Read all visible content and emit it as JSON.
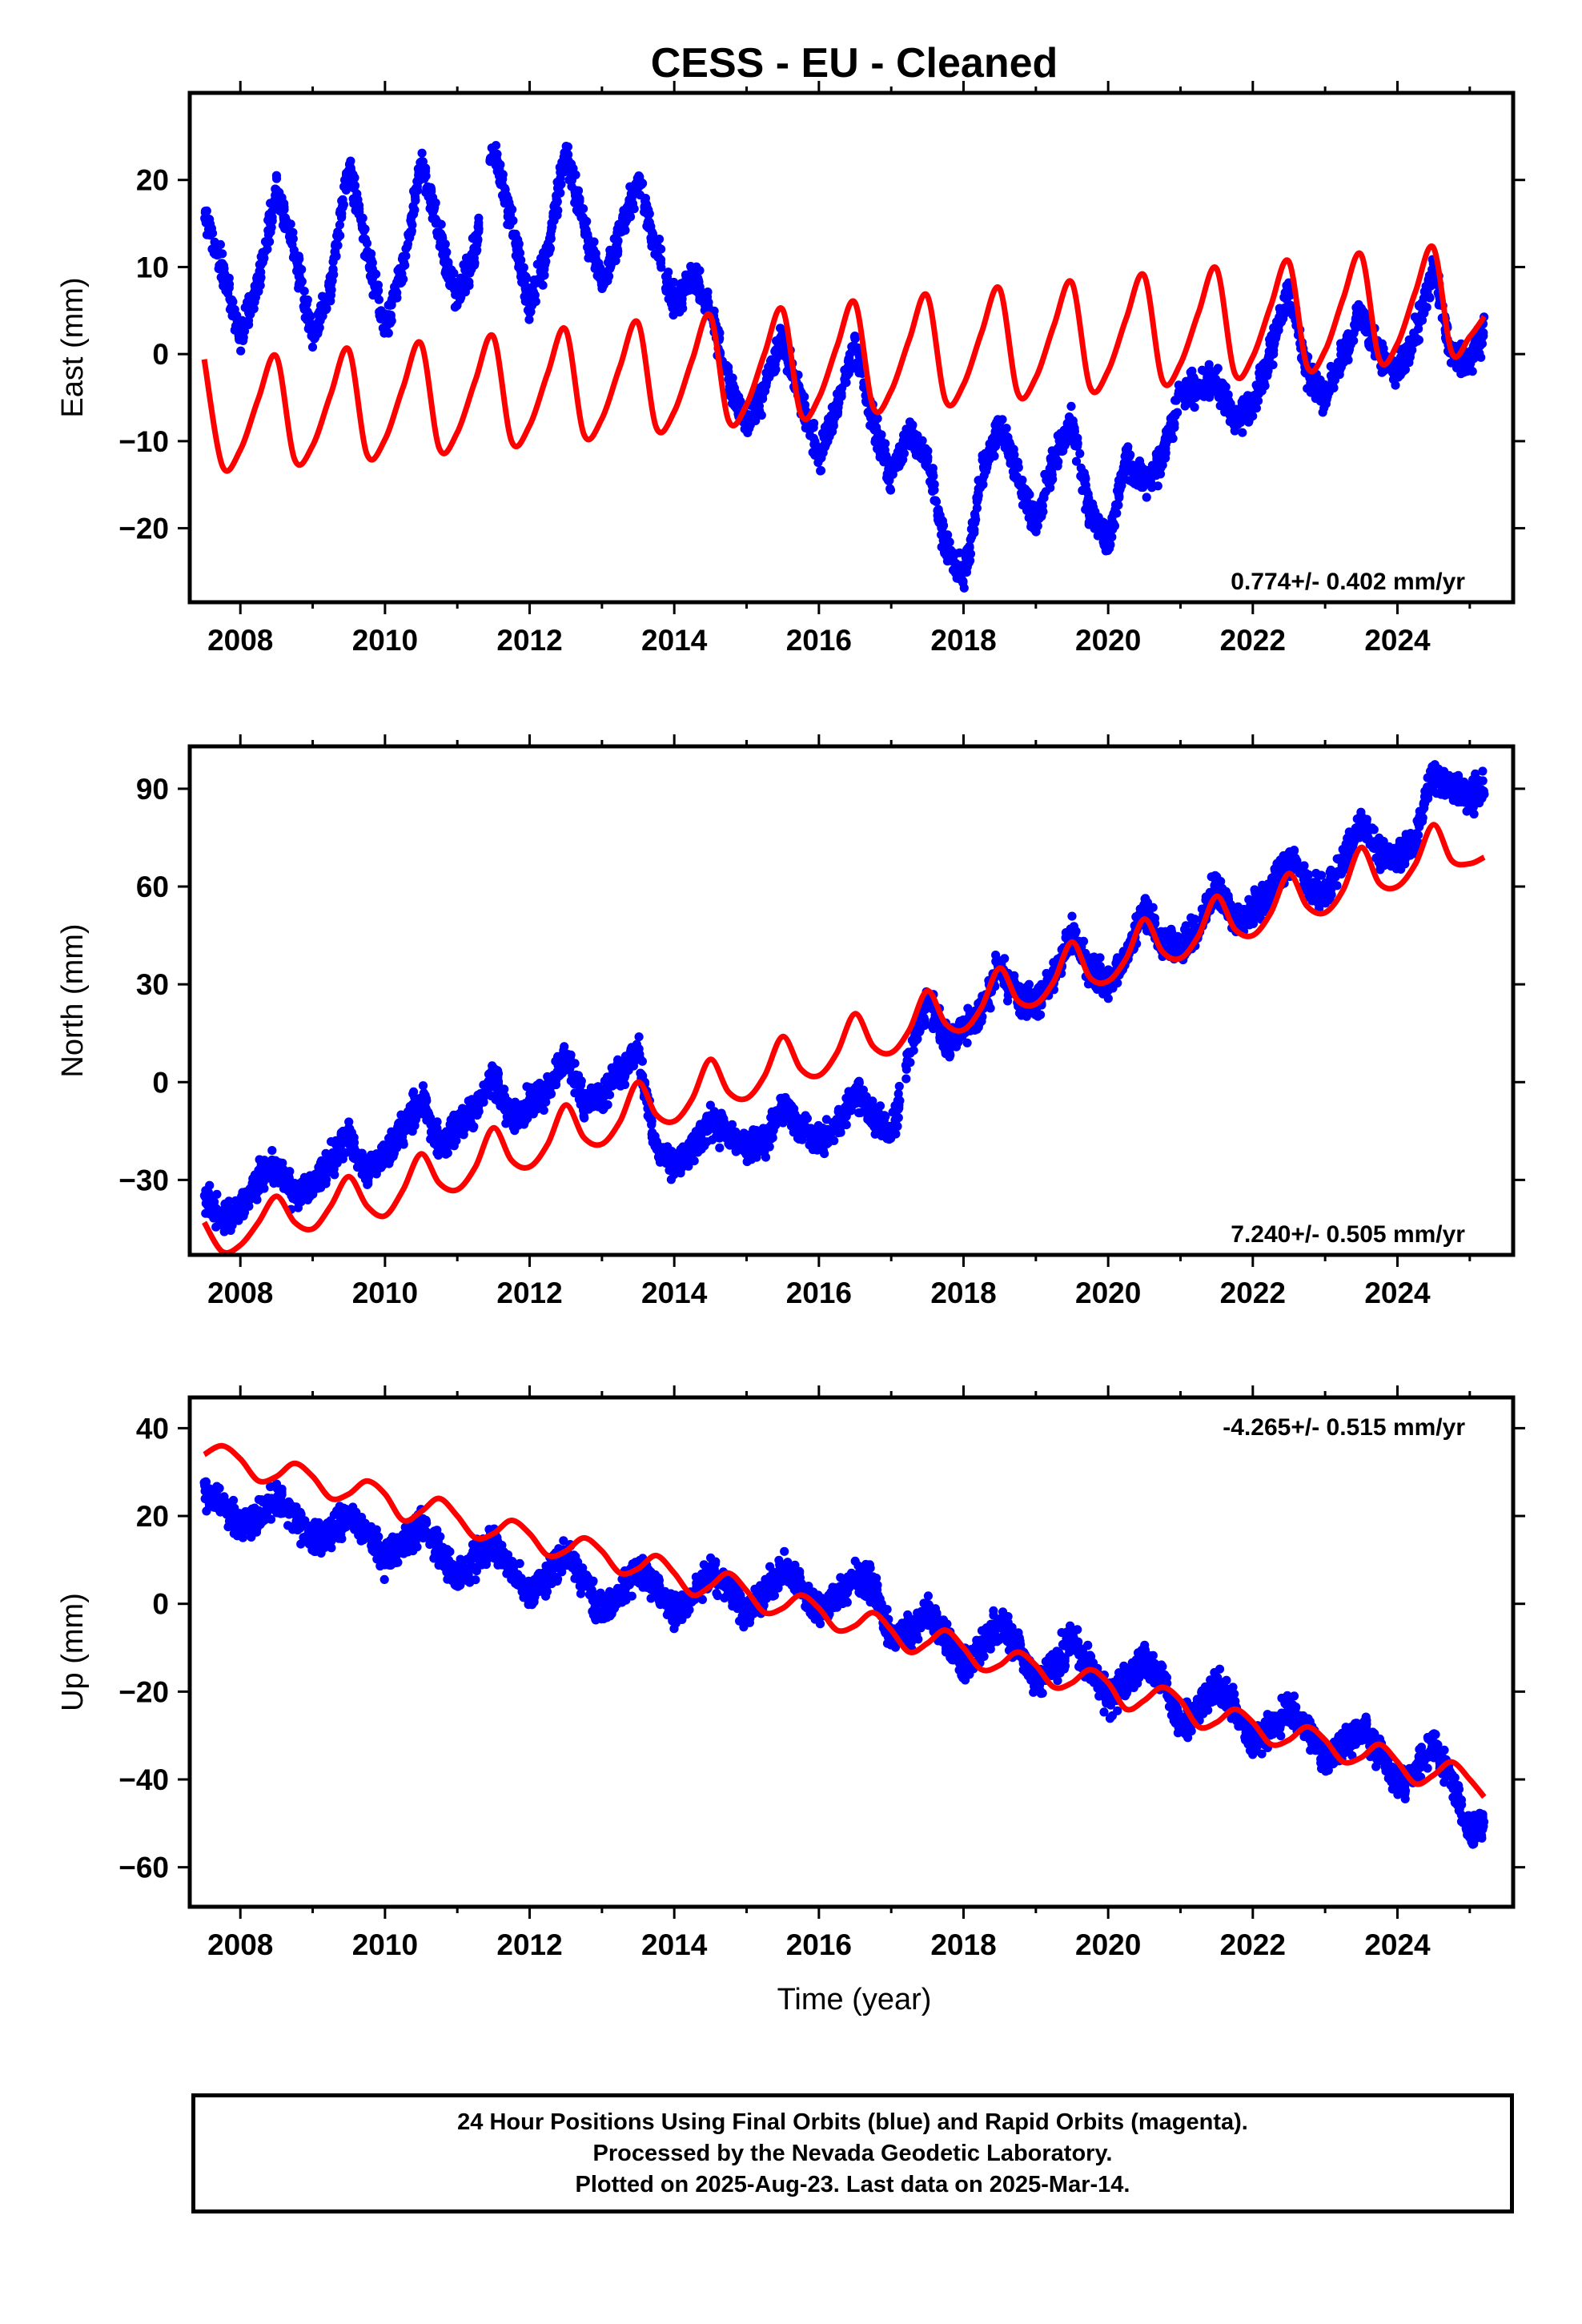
{
  "title": "CESS  - EU - Cleaned",
  "xlabel": "Time (year)",
  "footer": {
    "line1": "24 Hour Positions Using Final Orbits (blue) and Rapid Orbits (magenta).",
    "line2": "Processed by the Nevada Geodetic Laboratory.",
    "line3": "Plotted on 2025-Aug-23. Last data on 2025-Mar-14."
  },
  "colors": {
    "observations": "#0000ff",
    "model": "#ff0000",
    "frame": "#000000"
  },
  "chart_data": [
    {
      "type": "scatter",
      "component": "East",
      "ylabel": "East (mm)",
      "xlim": [
        2007.3,
        2025.6
      ],
      "ylim": [
        -28.5,
        30
      ],
      "xticks": [
        2008,
        2010,
        2012,
        2014,
        2016,
        2018,
        2020,
        2022,
        2024
      ],
      "yticks": [
        -20,
        -10,
        0,
        10,
        20
      ],
      "rate_label": "0.774+/- 0.402 mm/yr",
      "rate_position": "bottom-right",
      "series": [
        {
          "kind": "observations",
          "x": [
            2007.5,
            2007.75,
            2008.0,
            2008.25,
            2008.5,
            2008.75,
            2009.0,
            2009.25,
            2009.5,
            2009.75,
            2010.0,
            2010.25,
            2010.5,
            2010.75,
            2011.0,
            2011.25,
            2011.5,
            2011.75,
            2012.0,
            2012.25,
            2012.5,
            2012.75,
            2013.0,
            2013.25,
            2013.5,
            2013.75,
            2014.0,
            2014.25,
            2014.5,
            2014.75,
            2015.0,
            2015.25,
            2015.5,
            2015.75,
            2016.0,
            2016.25,
            2016.5,
            2016.75,
            2017.0,
            2017.25,
            2017.5,
            2017.75,
            2018.0,
            2018.25,
            2018.5,
            2018.75,
            2019.0,
            2019.25,
            2019.5,
            2019.75,
            2020.0,
            2020.25,
            2020.5,
            2020.75,
            2021.0,
            2021.25,
            2021.5,
            2021.75,
            2022.0,
            2022.25,
            2022.5,
            2022.75,
            2023.0,
            2023.25,
            2023.5,
            2023.75,
            2024.0,
            2024.25,
            2024.5,
            2024.75,
            2025.0,
            2025.2
          ],
          "y": [
            16,
            10,
            2,
            8,
            19,
            12,
            2,
            8,
            22,
            12,
            3,
            10,
            22,
            14,
            6,
            12,
            24,
            15,
            5,
            12,
            23,
            15,
            8,
            14,
            20,
            12,
            6,
            9,
            5,
            -3,
            -8,
            -4,
            2,
            -5,
            -12,
            -6,
            1,
            -8,
            -14,
            -9,
            -12,
            -22,
            -26,
            -14,
            -8,
            -14,
            -20,
            -12,
            -8,
            -18,
            -22,
            -12,
            -15,
            -12,
            -4,
            -4,
            -3,
            -8,
            -6,
            0,
            8,
            -2,
            -5,
            0,
            5,
            0,
            -2,
            2,
            10,
            0,
            -1,
            3
          ]
        },
        {
          "kind": "model",
          "x": [
            2007.5,
            2007.75,
            2008.0,
            2008.25,
            2008.5,
            2008.75,
            2009.0,
            2009.25,
            2009.5,
            2009.75,
            2010.0,
            2010.25,
            2010.5,
            2010.75,
            2011.0,
            2011.25,
            2011.5,
            2011.75,
            2012.0,
            2012.25,
            2012.5,
            2012.75,
            2013.0,
            2013.25,
            2013.5,
            2013.75,
            2014.0,
            2014.25,
            2014.5,
            2014.75,
            2015.0,
            2015.25,
            2015.5,
            2015.75,
            2016.0,
            2016.25,
            2016.5,
            2016.75,
            2017.0,
            2017.25,
            2017.5,
            2017.75,
            2018.0,
            2018.25,
            2018.5,
            2018.75,
            2019.0,
            2019.25,
            2019.5,
            2019.75,
            2020.0,
            2020.25,
            2020.5,
            2020.75,
            2021.0,
            2021.25,
            2021.5,
            2021.75,
            2022.0,
            2022.25,
            2022.5,
            2022.75,
            2023.0,
            2023.25,
            2023.5,
            2023.75,
            2024.0,
            2024.25,
            2024.5,
            2024.75,
            2025.0,
            2025.2
          ],
          "y": [
            -0.6,
            -12.8,
            -11.0,
            -5.1,
            -0.3,
            -12.1,
            -10.5,
            -4.6,
            0.5,
            -11.5,
            -9.8,
            -3.8,
            1.2,
            -10.8,
            -9.0,
            -3.0,
            2.0,
            -10.0,
            -8.2,
            -2.2,
            2.8,
            -9.2,
            -7.4,
            -1.4,
            3.6,
            -8.4,
            -6.6,
            -0.6,
            4.4,
            -7.6,
            -5.8,
            0.1,
            5.1,
            -6.9,
            -5.0,
            0.9,
            5.9,
            -6.1,
            -4.2,
            1.7,
            6.7,
            -5.3,
            -3.5,
            2.5,
            7.5,
            -4.5,
            -2.7,
            3.3,
            8.2,
            -3.8,
            -1.9,
            4.1,
            9.0,
            -3.0,
            -1.1,
            4.8,
            9.8,
            -2.2,
            -0.3,
            5.6,
            10.6,
            -1.4,
            0.4,
            6.4,
            11.4,
            -0.6,
            1.2,
            7.2,
            12.2,
            0.2,
            2.0,
            4.3
          ]
        }
      ]
    },
    {
      "type": "scatter",
      "component": "North",
      "ylabel": "North (mm)",
      "xlim": [
        2007.3,
        2025.6
      ],
      "ylim": [
        -53,
        103
      ],
      "xticks": [
        2008,
        2010,
        2012,
        2014,
        2016,
        2018,
        2020,
        2022,
        2024
      ],
      "yticks": [
        -30,
        0,
        30,
        60,
        90
      ],
      "rate_label": "7.240+/- 0.505 mm/yr",
      "rate_position": "bottom-right",
      "series": [
        {
          "kind": "observations",
          "x": [
            2007.5,
            2007.75,
            2008.0,
            2008.25,
            2008.5,
            2008.75,
            2009.0,
            2009.25,
            2009.5,
            2009.75,
            2010.0,
            2010.25,
            2010.5,
            2010.75,
            2011.0,
            2011.25,
            2011.5,
            2011.75,
            2012.0,
            2012.25,
            2012.5,
            2012.75,
            2013.0,
            2013.25,
            2013.5,
            2013.75,
            2014.0,
            2014.25,
            2014.5,
            2014.75,
            2015.0,
            2015.25,
            2015.5,
            2015.75,
            2016.0,
            2016.25,
            2016.5,
            2016.75,
            2017.0,
            2017.25,
            2017.5,
            2017.75,
            2018.0,
            2018.25,
            2018.5,
            2018.75,
            2019.0,
            2019.25,
            2019.5,
            2019.75,
            2020.0,
            2020.25,
            2020.5,
            2020.75,
            2021.0,
            2021.25,
            2021.5,
            2021.75,
            2022.0,
            2022.25,
            2022.5,
            2022.75,
            2023.0,
            2023.25,
            2023.5,
            2023.75,
            2024.0,
            2024.25,
            2024.5,
            2024.75,
            2025.0,
            2025.2
          ],
          "y": [
            -35,
            -42,
            -38,
            -30,
            -26,
            -35,
            -32,
            -24,
            -16,
            -28,
            -22,
            -15,
            -4,
            -20,
            -14,
            -8,
            2,
            -12,
            -6,
            -2,
            8,
            -6,
            -4,
            2,
            10,
            -22,
            -25,
            -20,
            -12,
            -16,
            -20,
            -18,
            -8,
            -14,
            -18,
            -14,
            -4,
            -10,
            -16,
            8,
            26,
            12,
            16,
            22,
            35,
            26,
            24,
            32,
            46,
            34,
            30,
            38,
            54,
            42,
            42,
            48,
            60,
            50,
            52,
            58,
            70,
            60,
            58,
            68,
            80,
            70,
            68,
            75,
            95,
            90,
            88,
            90
          ]
        },
        {
          "kind": "model",
          "x": [
            2007.5,
            2007.75,
            2008.0,
            2008.25,
            2008.5,
            2008.75,
            2009.0,
            2009.25,
            2009.5,
            2009.75,
            2010.0,
            2010.25,
            2010.5,
            2010.75,
            2011.0,
            2011.25,
            2011.5,
            2011.75,
            2012.0,
            2012.25,
            2012.5,
            2012.75,
            2013.0,
            2013.25,
            2013.5,
            2013.75,
            2014.0,
            2014.25,
            2014.5,
            2014.75,
            2015.0,
            2015.25,
            2015.5,
            2015.75,
            2016.0,
            2016.25,
            2016.5,
            2016.75,
            2017.0,
            2017.25,
            2017.5,
            2017.75,
            2018.0,
            2018.25,
            2018.5,
            2018.75,
            2019.0,
            2019.25,
            2019.5,
            2019.75,
            2020.0,
            2020.25,
            2020.5,
            2020.75,
            2021.0,
            2021.25,
            2021.5,
            2021.75,
            2022.0,
            2022.25,
            2022.5,
            2022.75,
            2023.0,
            2023.25,
            2023.5,
            2023.75,
            2024.0,
            2024.25,
            2024.5,
            2024.75,
            2025.0,
            2025.2
          ],
          "y": [
            -43,
            -52,
            -50,
            -43,
            -35,
            -43,
            -45,
            -38,
            -29,
            -38,
            -41,
            -33,
            -22,
            -31,
            -33,
            -26,
            -14,
            -24,
            -26,
            -19,
            -7,
            -17,
            -19,
            -12,
            0,
            -10,
            -12,
            -5,
            7,
            -3,
            -5,
            2,
            14,
            4,
            2,
            9,
            21,
            11,
            9,
            16,
            28,
            18,
            16,
            23,
            35,
            25,
            24,
            31,
            43,
            32,
            31,
            38,
            50,
            40,
            38,
            45,
            57,
            47,
            45,
            52,
            64,
            54,
            52,
            59,
            72,
            61,
            60,
            67,
            79,
            68,
            67,
            69
          ]
        }
      ]
    },
    {
      "type": "scatter",
      "component": "Up",
      "ylabel": "Up (mm)",
      "xlim": [
        2007.3,
        2025.6
      ],
      "ylim": [
        -69,
        47
      ],
      "xticks": [
        2008,
        2010,
        2012,
        2014,
        2016,
        2018,
        2020,
        2022,
        2024
      ],
      "yticks": [
        -60,
        -40,
        -20,
        0,
        20,
        40
      ],
      "rate_label": "-4.265+/- 0.515 mm/yr",
      "rate_position": "top-right",
      "series": [
        {
          "kind": "observations",
          "x": [
            2007.5,
            2007.75,
            2008.0,
            2008.25,
            2008.5,
            2008.75,
            2009.0,
            2009.25,
            2009.5,
            2009.75,
            2010.0,
            2010.25,
            2010.5,
            2010.75,
            2011.0,
            2011.25,
            2011.5,
            2011.75,
            2012.0,
            2012.25,
            2012.5,
            2012.75,
            2013.0,
            2013.25,
            2013.5,
            2013.75,
            2014.0,
            2014.25,
            2014.5,
            2014.75,
            2015.0,
            2015.25,
            2015.5,
            2015.75,
            2016.0,
            2016.25,
            2016.5,
            2016.75,
            2017.0,
            2017.25,
            2017.5,
            2017.75,
            2018.0,
            2018.25,
            2018.5,
            2018.75,
            2019.0,
            2019.25,
            2019.5,
            2019.75,
            2020.0,
            2020.25,
            2020.5,
            2020.75,
            2021.0,
            2021.25,
            2021.5,
            2021.75,
            2022.0,
            2022.25,
            2022.5,
            2022.75,
            2023.0,
            2023.25,
            2023.5,
            2023.75,
            2024.0,
            2024.25,
            2024.5,
            2024.75,
            2025.0,
            2025.2
          ],
          "y": [
            26,
            22,
            18,
            20,
            24,
            20,
            14,
            16,
            20,
            16,
            10,
            14,
            18,
            12,
            6,
            10,
            14,
            8,
            2,
            6,
            12,
            6,
            -2,
            2,
            8,
            4,
            -2,
            2,
            8,
            4,
            -2,
            2,
            8,
            4,
            -2,
            2,
            6,
            4,
            -8,
            -6,
            -2,
            -8,
            -14,
            -10,
            -4,
            -10,
            -18,
            -14,
            -8,
            -14,
            -22,
            -18,
            -12,
            -18,
            -28,
            -24,
            -18,
            -24,
            -32,
            -28,
            -24,
            -28,
            -36,
            -32,
            -28,
            -34,
            -42,
            -38,
            -32,
            -40,
            -52,
            -50
          ]
        },
        {
          "kind": "model",
          "x": [
            2007.5,
            2007.75,
            2008.0,
            2008.25,
            2008.5,
            2008.75,
            2009.0,
            2009.25,
            2009.5,
            2009.75,
            2010.0,
            2010.25,
            2010.5,
            2010.75,
            2011.0,
            2011.25,
            2011.5,
            2011.75,
            2012.0,
            2012.25,
            2012.5,
            2012.75,
            2013.0,
            2013.25,
            2013.5,
            2013.75,
            2014.0,
            2014.25,
            2014.5,
            2014.75,
            2015.0,
            2015.25,
            2015.5,
            2015.75,
            2016.0,
            2016.25,
            2016.5,
            2016.75,
            2017.0,
            2017.25,
            2017.5,
            2017.75,
            2018.0,
            2018.25,
            2018.5,
            2018.75,
            2019.0,
            2019.25,
            2019.5,
            2019.75,
            2020.0,
            2020.25,
            2020.5,
            2020.75,
            2021.0,
            2021.25,
            2021.5,
            2021.75,
            2022.0,
            2022.25,
            2022.5,
            2022.75,
            2023.0,
            2023.25,
            2023.5,
            2023.75,
            2024.0,
            2024.25,
            2024.5,
            2024.75,
            2025.0,
            2025.2
          ],
          "y": [
            34,
            36,
            33,
            28,
            29,
            32,
            29,
            24,
            25,
            28,
            25,
            19,
            21,
            24,
            20,
            15,
            16,
            19,
            16,
            11,
            12,
            15,
            12,
            7,
            8,
            11,
            7,
            2,
            4,
            7,
            3,
            -2,
            -1,
            2,
            -1,
            -6,
            -5,
            -2,
            -6,
            -11,
            -9,
            -6,
            -10,
            -15,
            -14,
            -11,
            -14,
            -19,
            -18,
            -15,
            -18,
            -24,
            -22,
            -19,
            -22,
            -28,
            -27,
            -24,
            -27,
            -32,
            -31,
            -28,
            -31,
            -36,
            -35,
            -32,
            -36,
            -41,
            -39,
            -36,
            -40,
            -44
          ]
        }
      ]
    }
  ]
}
